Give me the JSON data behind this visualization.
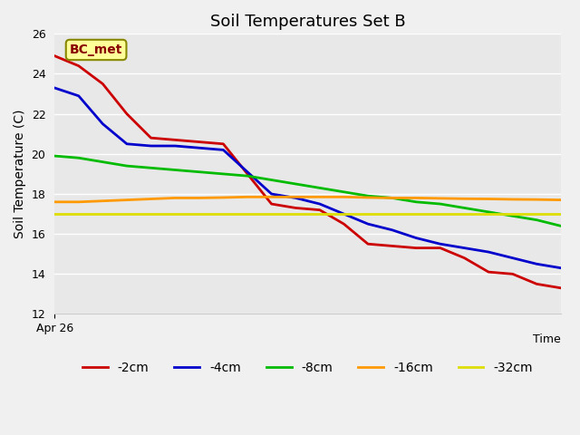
{
  "title": "Soil Temperatures Set B",
  "xlabel": "Time",
  "ylabel": "Soil Temperature (C)",
  "xlim": [
    0,
    100
  ],
  "ylim": [
    12,
    26
  ],
  "yticks": [
    12,
    14,
    16,
    18,
    20,
    22,
    24,
    26
  ],
  "xlabel_start": "Apr 26",
  "annotation_label": "BC_met",
  "background_color": "#e8e8e8",
  "plot_bg_color": "#e8e8e8",
  "series": {
    "-2cm": {
      "color": "#cc0000",
      "y": [
        24.9,
        24.4,
        23.5,
        22.0,
        20.8,
        20.7,
        20.6,
        20.5,
        19.0,
        17.5,
        17.3,
        17.2,
        16.5,
        15.5,
        15.4,
        15.3,
        15.3,
        14.8,
        14.1,
        14.0,
        13.5,
        13.3
      ]
    },
    "-4cm": {
      "color": "#0000cc",
      "y": [
        23.3,
        22.9,
        21.5,
        20.5,
        20.4,
        20.4,
        20.3,
        20.2,
        19.1,
        18.0,
        17.8,
        17.5,
        17.0,
        16.5,
        16.2,
        15.8,
        15.5,
        15.3,
        15.1,
        14.8,
        14.5,
        14.3
      ]
    },
    "-8cm": {
      "color": "#00bb00",
      "y": [
        19.9,
        19.8,
        19.6,
        19.4,
        19.3,
        19.2,
        19.1,
        19.0,
        18.9,
        18.7,
        18.5,
        18.3,
        18.1,
        17.9,
        17.8,
        17.6,
        17.5,
        17.3,
        17.1,
        16.9,
        16.7,
        16.4
      ]
    },
    "-16cm": {
      "color": "#ff9900",
      "y": [
        17.6,
        17.6,
        17.65,
        17.7,
        17.75,
        17.8,
        17.8,
        17.82,
        17.85,
        17.85,
        17.85,
        17.85,
        17.85,
        17.82,
        17.8,
        17.8,
        17.78,
        17.76,
        17.75,
        17.73,
        17.72,
        17.7
      ]
    },
    "-32cm": {
      "color": "#dddd00",
      "y": [
        17.0,
        17.0,
        17.0,
        17.0,
        17.0,
        17.0,
        17.0,
        17.0,
        17.0,
        17.0,
        17.0,
        17.0,
        17.0,
        17.0,
        17.0,
        17.0,
        17.0,
        17.0,
        17.0,
        17.0,
        17.0,
        17.0
      ]
    }
  },
  "legend_order": [
    "-2cm",
    "-4cm",
    "-8cm",
    "-16cm",
    "-32cm"
  ],
  "annotation_box_color": "#ffff99",
  "annotation_box_edge": "#888800",
  "annotation_text_color": "#880000"
}
